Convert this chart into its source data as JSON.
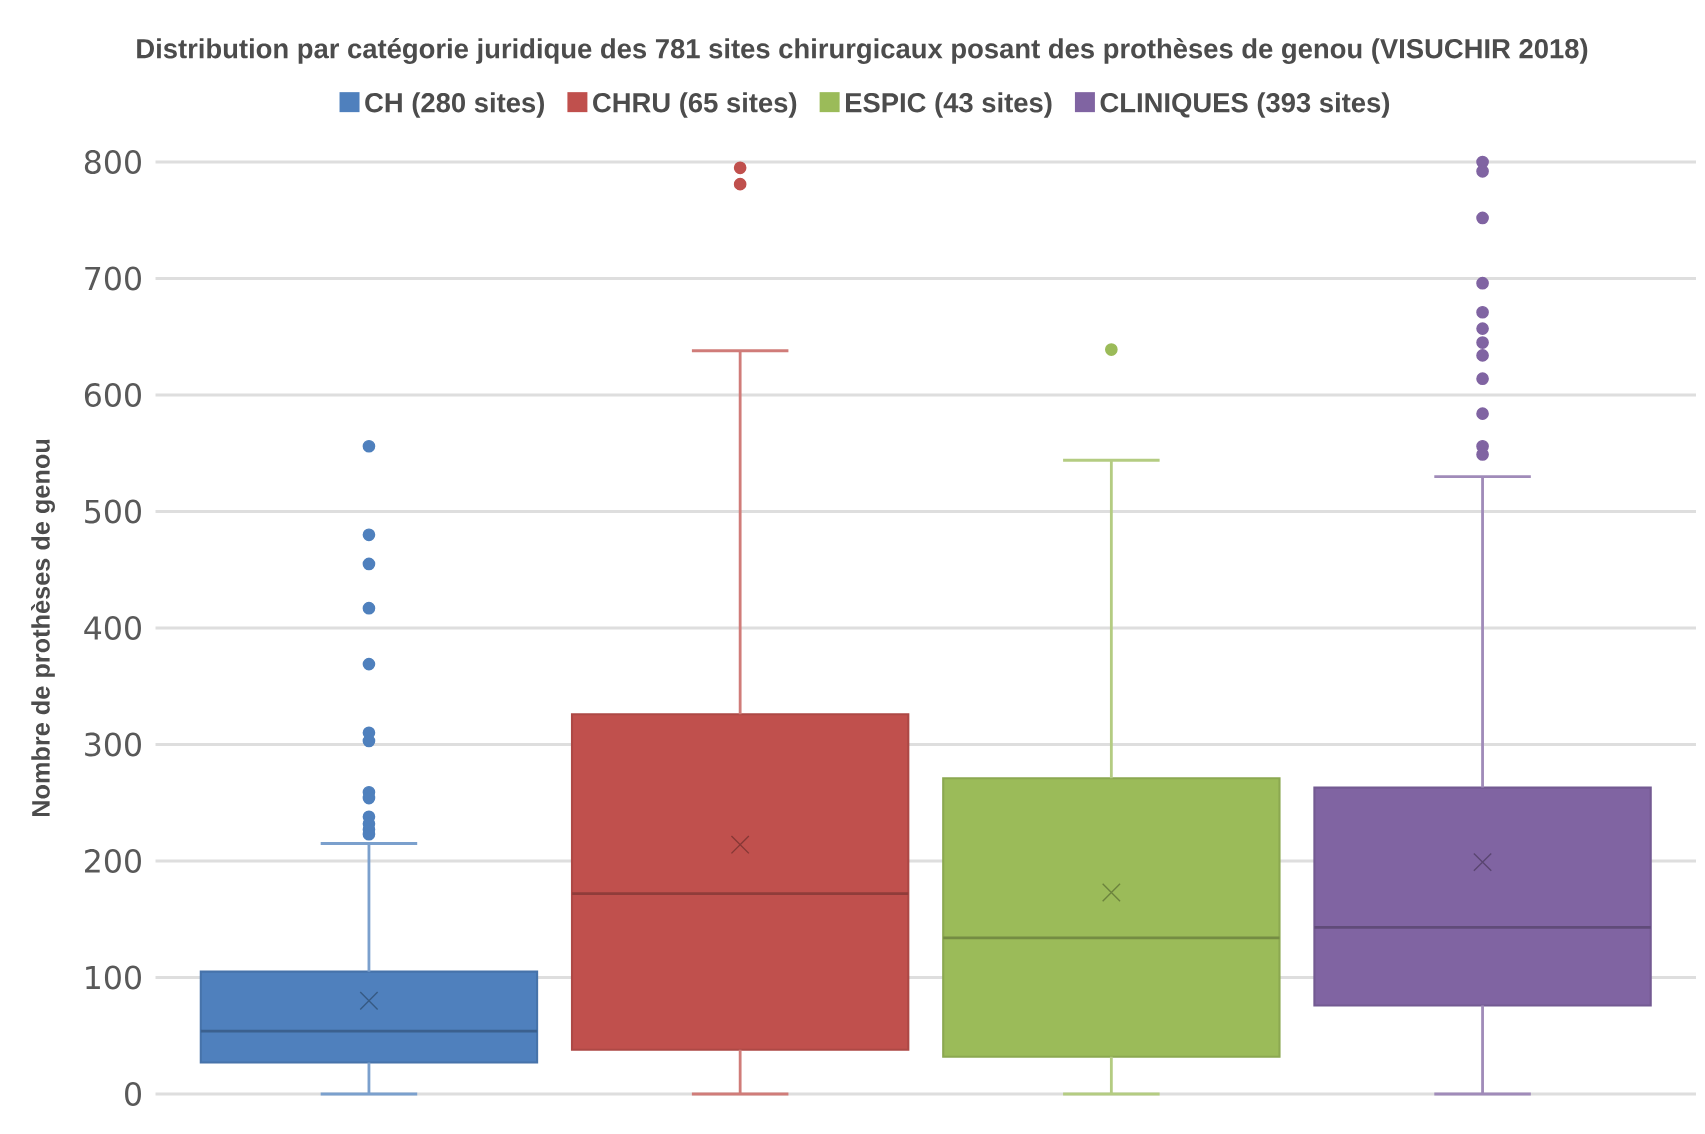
{
  "chart_data": {
    "type": "box",
    "title": "Distribution par catégorie juridique des 781 sites chirurgicaux posant des prothèses de genou (VISUCHIR 2018)",
    "ylabel": "Nombre de prothèses de genou",
    "categories": [
      null,
      null,
      null,
      null
    ],
    "ylim": [
      0,
      800
    ],
    "yticks": [
      0,
      100,
      200,
      300,
      400,
      500,
      600,
      700,
      800
    ],
    "grid": "y",
    "legend": "top",
    "series": [
      {
        "name": "CH (280 sites)",
        "color": "#4f80bd",
        "boxes": [
          {
            "low": 0,
            "q1": 27,
            "median": 54,
            "q3": 105,
            "high": 215,
            "mean": 80,
            "outliers": [
              556,
              480,
              455,
              417,
              369,
              310,
              303,
              259,
              254,
              238,
              232,
              227,
              223
            ]
          },
          null,
          null,
          null
        ]
      },
      {
        "name": "CHRU (65 sites)",
        "color": "#c0504d",
        "boxes": [
          null,
          {
            "low": 0,
            "q1": 38,
            "median": 172,
            "q3": 326,
            "high": 638,
            "mean": 214,
            "outliers": [
              795,
              781
            ]
          },
          null,
          null
        ]
      },
      {
        "name": "ESPIC (43 sites)",
        "color": "#9bbb59",
        "boxes": [
          null,
          null,
          {
            "low": 0,
            "q1": 32,
            "median": 134,
            "q3": 271,
            "high": 544,
            "mean": 173,
            "outliers": [
              639
            ]
          },
          null
        ]
      },
      {
        "name": "CLINIQUES (393 sites)",
        "color": "#8064a2",
        "boxes": [
          null,
          null,
          null,
          {
            "low": 0,
            "q1": 76,
            "median": 143,
            "q3": 263,
            "high": 530,
            "mean": 199,
            "outliers": [
              800,
              792,
              752,
              696,
              671,
              657,
              645,
              634,
              614,
              584,
              556,
              549
            ]
          }
        ]
      }
    ]
  }
}
